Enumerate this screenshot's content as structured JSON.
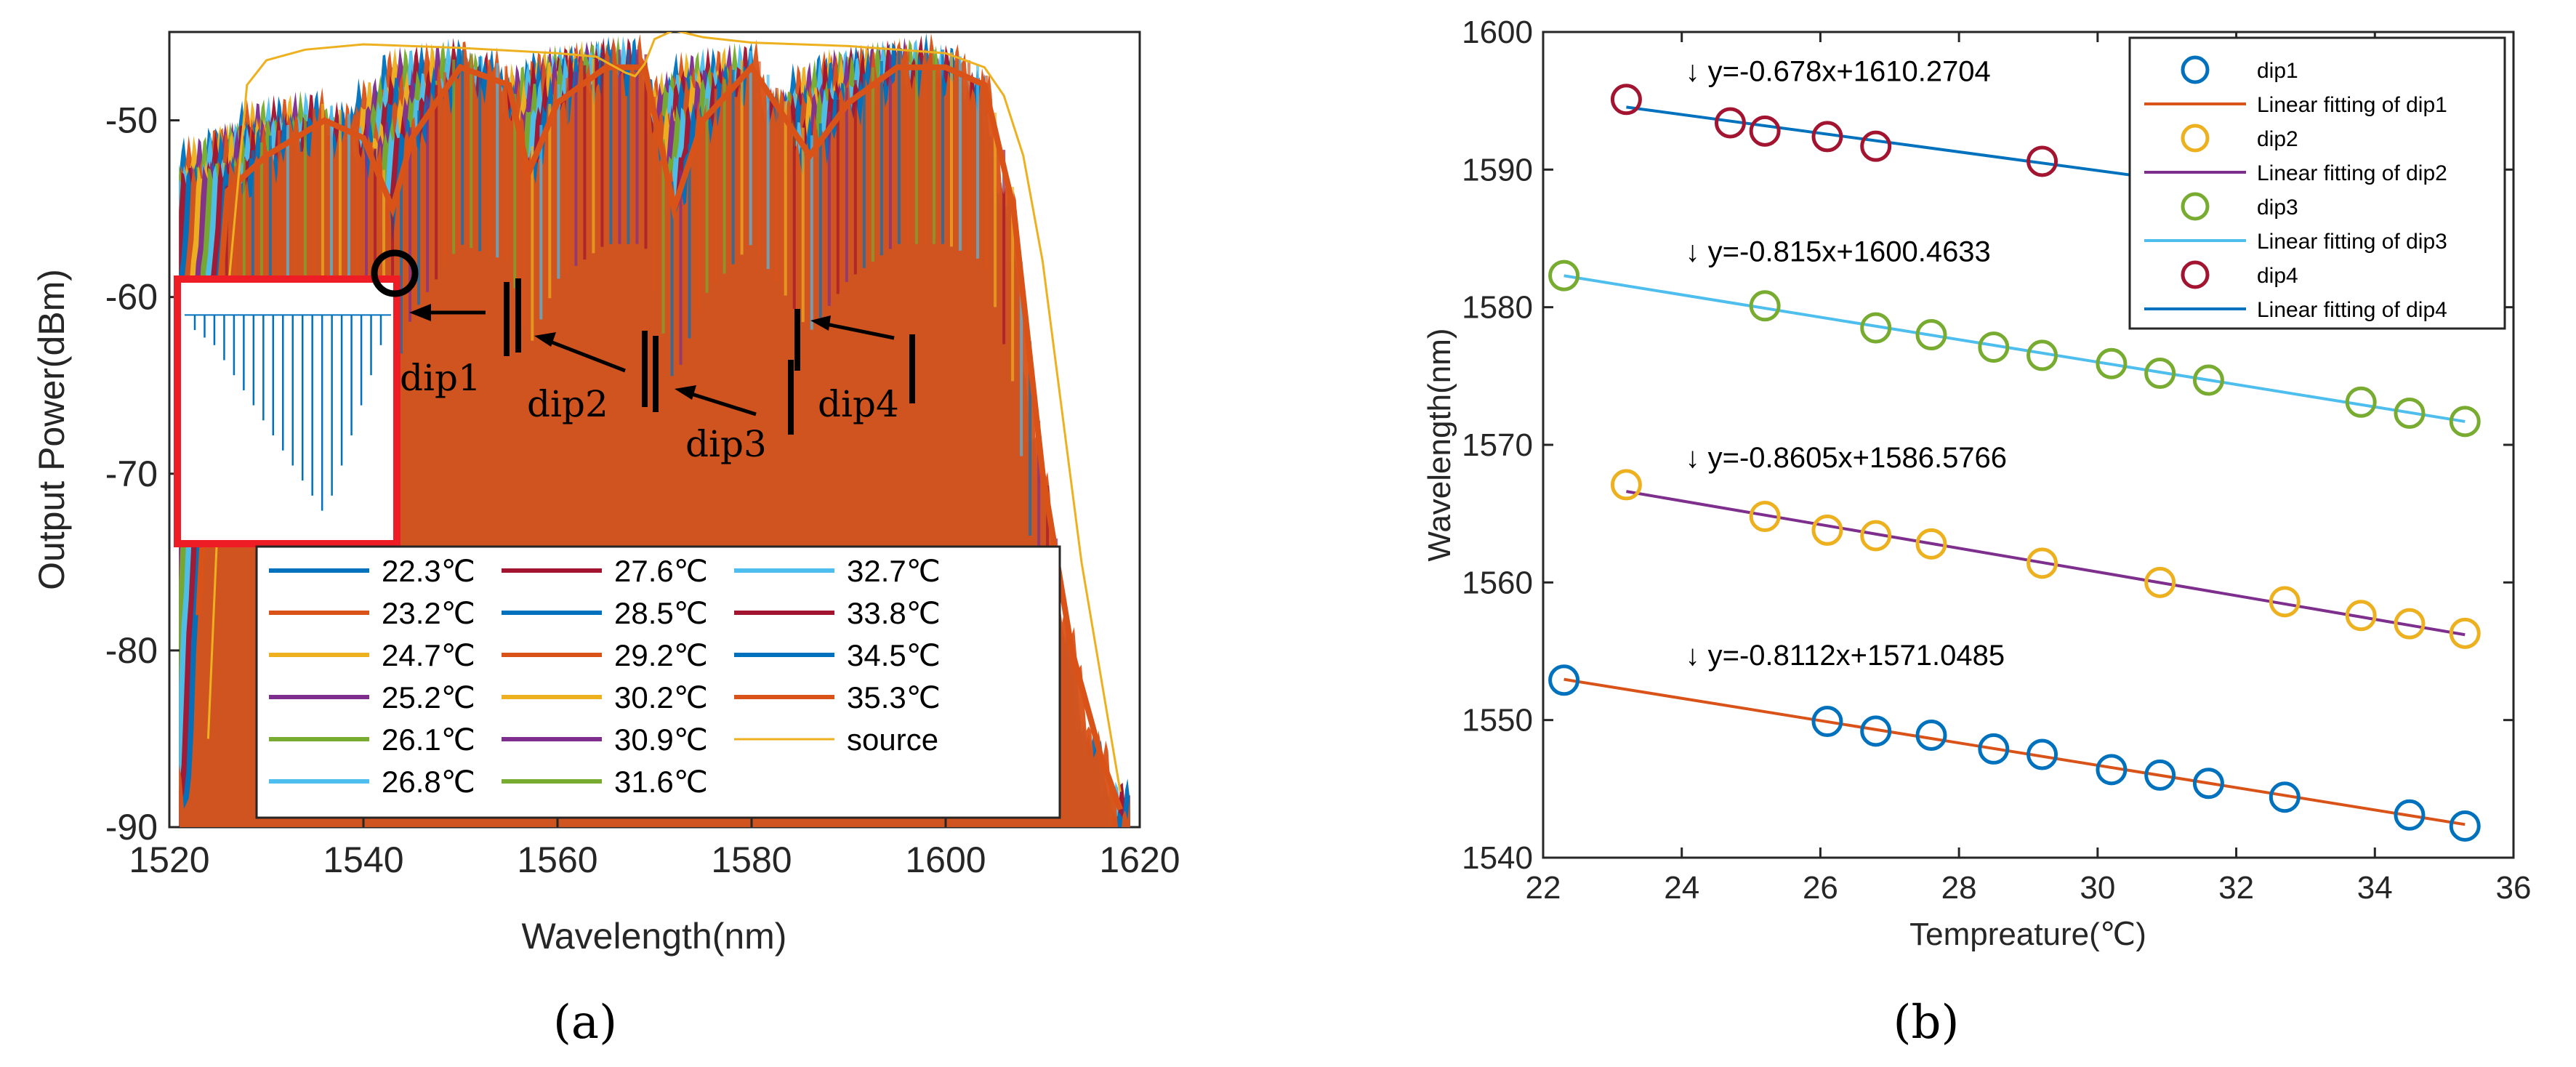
{
  "chart_data": [
    {
      "panel_label": "(a)",
      "type": "line",
      "title": "",
      "xlabel": "Wavelength(nm)",
      "ylabel": "Output Power(dBm)",
      "xlim": [
        1520,
        1620
      ],
      "ylim": [
        -90,
        -45
      ],
      "xticks": [
        "1520",
        "1540",
        "1560",
        "1580",
        "1600",
        "1620"
      ],
      "yticks": [
        "-90",
        "-80",
        "-70",
        "-60",
        "-50"
      ],
      "legend": {
        "placement": "bottom-center",
        "entries": [
          {
            "label": "22.3℃",
            "color": "#0072BD"
          },
          {
            "label": "23.2℃",
            "color": "#D95319"
          },
          {
            "label": "24.7℃",
            "color": "#EDB120"
          },
          {
            "label": "25.2℃",
            "color": "#7E2F8E"
          },
          {
            "label": "26.1℃",
            "color": "#77AC30"
          },
          {
            "label": "26.8℃",
            "color": "#4DBEEE"
          },
          {
            "label": "27.6℃",
            "color": "#A2142F"
          },
          {
            "label": "28.5℃",
            "color": "#0072BD"
          },
          {
            "label": "29.2℃",
            "color": "#D95319"
          },
          {
            "label": "30.2℃",
            "color": "#EDB120"
          },
          {
            "label": "30.9℃",
            "color": "#7E2F8E"
          },
          {
            "label": "31.6℃",
            "color": "#77AC30"
          },
          {
            "label": "32.7℃",
            "color": "#4DBEEE"
          },
          {
            "label": "33.8℃",
            "color": "#A2142F"
          },
          {
            "label": "34.5℃",
            "color": "#0072BD"
          },
          {
            "label": "35.3℃",
            "color": "#D95319"
          },
          {
            "label": "source",
            "color": "#EDB120"
          }
        ]
      },
      "dips": [
        {
          "name": "dip1",
          "wavelength": 1543
        },
        {
          "name": "dip2",
          "wavelength": 1557
        },
        {
          "name": "dip3",
          "wavelength": 1572
        },
        {
          "name": "dip4",
          "wavelength": 1586
        }
      ],
      "source_curve": {
        "x": [
          1524,
          1526,
          1528,
          1530,
          1534,
          1540,
          1550,
          1560,
          1564,
          1567,
          1568,
          1569,
          1570,
          1572,
          1575,
          1580,
          1590,
          1600,
          1604,
          1606,
          1608,
          1610,
          1614,
          1618
        ],
        "y": [
          -85,
          -60,
          -48,
          -46.6,
          -46,
          -45.7,
          -45.9,
          -46.2,
          -46.4,
          -47.3,
          -47.5,
          -46.8,
          -45.4,
          -44.9,
          -45.3,
          -45.6,
          -45.8,
          -46.2,
          -47,
          -48.6,
          -52,
          -58,
          -75,
          -88
        ]
      },
      "spectra_curve": {
        "x": [
          1522,
          1524,
          1526,
          1530,
          1536,
          1540,
          1543,
          1545,
          1550,
          1555,
          1557,
          1560,
          1565,
          1569,
          1572,
          1575,
          1580,
          1586,
          1590,
          1595,
          1600,
          1604,
          1607,
          1610,
          1613,
          1616,
          1618
        ],
        "y": [
          -88,
          -68,
          -54,
          -52,
          -50,
          -51,
          -55,
          -51,
          -47,
          -48,
          -53,
          -49,
          -47,
          -47,
          -55,
          -50,
          -47,
          -52,
          -49,
          -47,
          -47,
          -48,
          -55,
          -70,
          -80,
          -86,
          -89
        ]
      },
      "temperature_stack_count": 16,
      "inset": {
        "x_range": [
          1521,
          1541
        ],
        "floor_dBm": -60,
        "dip_depths": [
          -61,
          -61.5,
          -62,
          -63,
          -64,
          -65,
          -66,
          -67,
          -68,
          -69,
          -70,
          -71,
          -72,
          -73,
          -72,
          -70,
          -68,
          -66,
          -64,
          -62
        ]
      }
    },
    {
      "panel_label": "(b)",
      "type": "scatter",
      "title": "",
      "xlabel": "Tempreature(℃)",
      "ylabel": "Wavelength(nm)",
      "xlim": [
        22,
        36
      ],
      "ylim": [
        1540,
        1600
      ],
      "xticks": [
        "22",
        "24",
        "26",
        "28",
        "30",
        "32",
        "34",
        "36"
      ],
      "yticks": [
        "1540",
        "1550",
        "1560",
        "1570",
        "1580",
        "1590",
        "1600"
      ],
      "legend": {
        "placement": "top-right",
        "entries": [
          {
            "label": "dip1",
            "kind": "marker",
            "color": "#0072BD"
          },
          {
            "label": "Linear fitting of dip1",
            "kind": "line",
            "color": "#D95319"
          },
          {
            "label": "dip2",
            "kind": "marker",
            "color": "#EDB120"
          },
          {
            "label": "Linear fitting of dip2",
            "kind": "line",
            "color": "#7E2F8E"
          },
          {
            "label": "dip3",
            "kind": "marker",
            "color": "#77AC30"
          },
          {
            "label": "Linear fitting of dip3",
            "kind": "line",
            "color": "#4DBEEE"
          },
          {
            "label": "dip4",
            "kind": "marker",
            "color": "#A2142F"
          },
          {
            "label": "Linear fitting of dip4",
            "kind": "line",
            "color": "#0072BD"
          }
        ]
      },
      "series": [
        {
          "name": "dip1",
          "marker_color": "#0072BD",
          "fit_color": "#D95319",
          "fit_label": "↓ y=-0.8112x+1571.0485",
          "fit": {
            "slope": -0.8112,
            "intercept": 1571.0485
          },
          "fit_x": [
            22.3,
            35.3
          ],
          "x": [
            22.3,
            26.1,
            26.8,
            27.6,
            28.5,
            29.2,
            30.2,
            30.9,
            31.6,
            32.7,
            34.5,
            35.3
          ],
          "y": [
            1552.9,
            1549.9,
            1549.2,
            1548.9,
            1547.9,
            1547.5,
            1546.4,
            1546.0,
            1545.4,
            1544.4,
            1543.1,
            1542.3
          ]
        },
        {
          "name": "dip2",
          "marker_color": "#EDB120",
          "fit_color": "#7E2F8E",
          "fit_label": "↓ y=-0.8605x+1586.5766",
          "fit": {
            "slope": -0.8605,
            "intercept": 1586.5766
          },
          "fit_x": [
            23.2,
            35.3
          ],
          "x": [
            23.2,
            25.2,
            26.1,
            26.8,
            27.6,
            29.2,
            30.9,
            32.7,
            33.8,
            34.5,
            35.3
          ],
          "y": [
            1567.1,
            1564.8,
            1563.8,
            1563.4,
            1562.8,
            1561.4,
            1560.0,
            1558.6,
            1557.6,
            1557.0,
            1556.3
          ]
        },
        {
          "name": "dip3",
          "marker_color": "#77AC30",
          "fit_color": "#4DBEEE",
          "fit_label": "↓ y=-0.815x+1600.4633",
          "fit": {
            "slope": -0.815,
            "intercept": 1600.4633
          },
          "fit_x": [
            22.3,
            35.3
          ],
          "x": [
            22.3,
            25.2,
            26.8,
            27.6,
            28.5,
            29.2,
            30.2,
            30.9,
            31.6,
            33.8,
            34.5,
            35.3
          ],
          "y": [
            1582.3,
            1580.1,
            1578.5,
            1578.0,
            1577.1,
            1576.5,
            1575.9,
            1575.2,
            1574.7,
            1573.1,
            1572.3,
            1571.7
          ]
        },
        {
          "name": "dip4",
          "marker_color": "#A2142F",
          "fit_color": "#0072BD",
          "fit_label": "↓ y=-0.678x+1610.2704",
          "fit": {
            "slope": -0.678,
            "intercept": 1610.2704
          },
          "fit_x": [
            23.2,
            35.3
          ],
          "x": [
            23.2,
            24.7,
            25.2,
            26.1,
            26.8,
            29.2
          ],
          "y": [
            1595.1,
            1593.4,
            1592.8,
            1592.4,
            1591.7,
            1590.6
          ]
        }
      ]
    }
  ]
}
